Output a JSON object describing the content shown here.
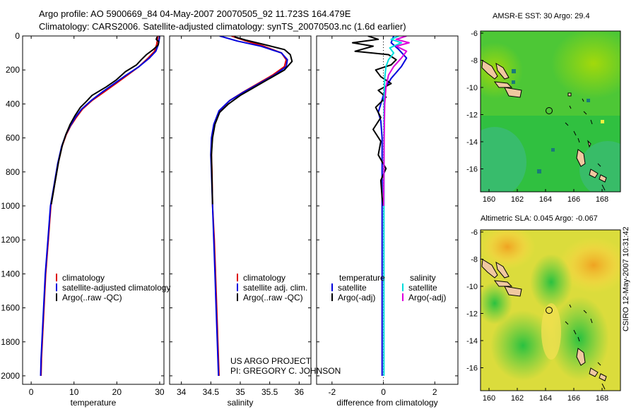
{
  "header": {
    "line1": "Argo profile: AO 5900669_84 04-May-2007 20070505_92 11.723S 164.479E",
    "line2": "Climatology: CARS2006. Satellite-adjusted climatology: synTS_20070503.nc (1.6d earlier)"
  },
  "credit": {
    "line1": "US ARGO PROJECT",
    "line2": "PI: GREGORY C. JOHNSON"
  },
  "stamp": "CSIRO 12-May-2007 10:31:42",
  "colors": {
    "climatology": "#dd0000",
    "satellite": "#0000dd",
    "argo": "#000000",
    "sat_sal": "#00dddd",
    "argo_sal": "#dd00dd",
    "land": "#f0c8a0"
  },
  "chart_data": [
    {
      "type": "line",
      "xlabel": "temperature",
      "xlim": [
        -2,
        31
      ],
      "ylim": [
        2050,
        0
      ],
      "xticks": [
        0,
        10,
        20,
        30
      ],
      "yticks": [
        0,
        200,
        400,
        600,
        800,
        1000,
        1200,
        1400,
        1600,
        1800,
        2000
      ],
      "legend": [
        "climatology",
        "satellite-adjusted climatology",
        "Argo(..raw -QC)"
      ],
      "series": [
        {
          "name": "climatology",
          "color": "#dd0000",
          "points": [
            [
              29.6,
              0
            ],
            [
              29.5,
              20
            ],
            [
              29.3,
              50
            ],
            [
              28.8,
              90
            ],
            [
              27.3,
              130
            ],
            [
              25.2,
              180
            ],
            [
              22.5,
              230
            ],
            [
              19.8,
              280
            ],
            [
              17,
              330
            ],
            [
              14.2,
              380
            ],
            [
              12,
              430
            ],
            [
              10.5,
              480
            ],
            [
              9.2,
              530
            ],
            [
              8.2,
              580
            ],
            [
              7.2,
              650
            ],
            [
              6.3,
              750
            ],
            [
              5.3,
              900
            ],
            [
              4.6,
              1000
            ],
            [
              4.0,
              1200
            ],
            [
              3.4,
              1400
            ],
            [
              3.0,
              1600
            ],
            [
              2.6,
              1800
            ],
            [
              2.4,
              1900
            ],
            [
              2.3,
              2000
            ]
          ]
        },
        {
          "name": "satellite-adjusted climatology",
          "color": "#0000dd",
          "points": [
            [
              30.0,
              0
            ],
            [
              29.9,
              20
            ],
            [
              29.7,
              50
            ],
            [
              29.1,
              90
            ],
            [
              27.6,
              130
            ],
            [
              25.2,
              180
            ],
            [
              22.2,
              230
            ],
            [
              19.4,
              280
            ],
            [
              16.6,
              330
            ],
            [
              14.0,
              380
            ],
            [
              11.8,
              430
            ],
            [
              10.3,
              480
            ],
            [
              9.1,
              530
            ],
            [
              8.1,
              580
            ],
            [
              7.1,
              650
            ],
            [
              6.2,
              750
            ],
            [
              5.2,
              900
            ],
            [
              4.5,
              1000
            ],
            [
              3.9,
              1200
            ],
            [
              3.3,
              1400
            ],
            [
              2.9,
              1600
            ],
            [
              2.5,
              1800
            ],
            [
              2.3,
              1900
            ],
            [
              2.2,
              2000
            ]
          ]
        },
        {
          "name": "Argo(..raw -QC)",
          "color": "#000000",
          "points": [
            [
              29.4,
              5
            ],
            [
              29.2,
              20
            ],
            [
              29.8,
              35
            ],
            [
              29.6,
              55
            ],
            [
              28.5,
              80
            ],
            [
              26.9,
              110
            ],
            [
              25.7,
              140
            ],
            [
              24.6,
              170
            ],
            [
              22,
              210
            ],
            [
              19.8,
              260
            ],
            [
              17.5,
              300
            ],
            [
              14.2,
              350
            ],
            [
              12.7,
              390
            ],
            [
              11.5,
              420
            ],
            [
              10.2,
              470
            ],
            [
              9.1,
              520
            ],
            [
              8.1,
              580
            ],
            [
              7.3,
              640
            ],
            [
              6.4,
              740
            ],
            [
              5.5,
              870
            ],
            [
              4.7,
              990
            ]
          ]
        }
      ]
    },
    {
      "type": "line",
      "xlabel": "salinity",
      "xlim": [
        33.8,
        36.2
      ],
      "ylim": [
        2050,
        0
      ],
      "xticks": [
        34,
        34.5,
        35,
        35.5,
        36
      ],
      "legend": [
        "climatology",
        "satellite adj. clim.",
        "Argo(..raw -QC)"
      ],
      "series": [
        {
          "name": "climatology",
          "color": "#dd0000",
          "points": [
            [
              34.85,
              0
            ],
            [
              35.1,
              30
            ],
            [
              35.4,
              60
            ],
            [
              35.7,
              100
            ],
            [
              35.78,
              140
            ],
            [
              35.75,
              180
            ],
            [
              35.55,
              230
            ],
            [
              35.3,
              280
            ],
            [
              35.05,
              330
            ],
            [
              34.82,
              380
            ],
            [
              34.65,
              440
            ],
            [
              34.56,
              520
            ],
            [
              34.52,
              600
            ],
            [
              34.51,
              700
            ],
            [
              34.52,
              800
            ],
            [
              34.53,
              1000
            ],
            [
              34.56,
              1200
            ],
            [
              34.58,
              1400
            ],
            [
              34.6,
              1600
            ],
            [
              34.62,
              1800
            ],
            [
              34.64,
              2000
            ]
          ]
        },
        {
          "name": "satellite adj. clim.",
          "color": "#0000dd",
          "points": [
            [
              34.65,
              0
            ],
            [
              34.95,
              30
            ],
            [
              35.35,
              60
            ],
            [
              35.7,
              100
            ],
            [
              35.8,
              140
            ],
            [
              35.78,
              180
            ],
            [
              35.58,
              230
            ],
            [
              35.32,
              280
            ],
            [
              35.06,
              330
            ],
            [
              34.82,
              380
            ],
            [
              34.64,
              440
            ],
            [
              34.55,
              520
            ],
            [
              34.51,
              600
            ],
            [
              34.5,
              700
            ],
            [
              34.51,
              800
            ],
            [
              34.53,
              1000
            ],
            [
              34.55,
              1200
            ],
            [
              34.57,
              1400
            ],
            [
              34.59,
              1600
            ],
            [
              34.61,
              1800
            ],
            [
              34.63,
              2000
            ]
          ]
        },
        {
          "name": "Argo(..raw -QC)",
          "color": "#000000",
          "points": [
            [
              34.9,
              5
            ],
            [
              35.1,
              25
            ],
            [
              35.4,
              50
            ],
            [
              35.75,
              80
            ],
            [
              35.85,
              110
            ],
            [
              35.88,
              150
            ],
            [
              35.75,
              200
            ],
            [
              35.5,
              250
            ],
            [
              35.25,
              300
            ],
            [
              35.0,
              350
            ],
            [
              34.8,
              400
            ],
            [
              34.65,
              450
            ],
            [
              34.57,
              520
            ],
            [
              34.53,
              600
            ],
            [
              34.51,
              700
            ],
            [
              34.52,
              850
            ],
            [
              34.53,
              990
            ]
          ]
        }
      ]
    },
    {
      "type": "line",
      "xlabel": "difference from climatology",
      "xlim": [
        -2.6,
        2.9
      ],
      "ylim": [
        2050,
        0
      ],
      "xticks": [
        -2,
        0,
        2
      ],
      "legend": [
        "temperature",
        "satellite",
        "Argo(-adj)",
        "salinity",
        "satellite",
        "Argo(-adj)"
      ],
      "series": [
        {
          "name": "satellite",
          "group": "temperature",
          "color": "#0000dd",
          "points": [
            [
              0.4,
              0
            ],
            [
              0.3,
              40
            ],
            [
              0.6,
              80
            ],
            [
              0.9,
              130
            ],
            [
              0.7,
              180
            ],
            [
              0.3,
              250
            ],
            [
              0.1,
              300
            ],
            [
              0.0,
              350
            ],
            [
              -0.1,
              400
            ],
            [
              -0.2,
              450
            ],
            [
              -0.1,
              500
            ],
            [
              -0.05,
              600
            ],
            [
              -0.05,
              800
            ],
            [
              -0.05,
              1000
            ],
            [
              -0.05,
              1200
            ],
            [
              -0.05,
              1500
            ],
            [
              -0.05,
              1800
            ],
            [
              -0.05,
              2000
            ]
          ]
        },
        {
          "name": "Argo(-adj)",
          "group": "temperature",
          "color": "#000000",
          "points": [
            [
              -0.6,
              0
            ],
            [
              -0.2,
              20
            ],
            [
              -1.2,
              40
            ],
            [
              -0.4,
              60
            ],
            [
              -1.1,
              90
            ],
            [
              0.2,
              110
            ],
            [
              0.5,
              140
            ],
            [
              0.3,
              170
            ],
            [
              -0.3,
              200
            ],
            [
              -0.1,
              240
            ],
            [
              0.3,
              280
            ],
            [
              -0.2,
              320
            ],
            [
              0.1,
              360
            ],
            [
              -0.3,
              420
            ],
            [
              -0.1,
              480
            ],
            [
              -0.4,
              550
            ],
            [
              -0.1,
              620
            ],
            [
              -0.2,
              700
            ],
            [
              0.1,
              780
            ],
            [
              -0.1,
              850
            ],
            [
              -0.05,
              950
            ],
            [
              0.0,
              1000
            ]
          ]
        },
        {
          "name": "satellite",
          "group": "salinity",
          "color": "#00dddd",
          "points": [
            [
              0.6,
              0
            ],
            [
              0.3,
              20
            ],
            [
              0.7,
              40
            ],
            [
              0.25,
              70
            ],
            [
              0.4,
              100
            ],
            [
              0.2,
              140
            ],
            [
              0.1,
              180
            ],
            [
              0.05,
              250
            ],
            [
              0.03,
              350
            ],
            [
              0.02,
              500
            ],
            [
              0.02,
              800
            ],
            [
              0.02,
              1200
            ],
            [
              0.02,
              1600
            ],
            [
              0.02,
              2000
            ]
          ]
        },
        {
          "name": "Argo(-adj)",
          "group": "salinity",
          "color": "#dd00dd",
          "points": [
            [
              0.9,
              0
            ],
            [
              0.5,
              20
            ],
            [
              1.0,
              40
            ],
            [
              0.5,
              60
            ],
            [
              0.9,
              90
            ],
            [
              0.7,
              130
            ],
            [
              0.4,
              180
            ],
            [
              0.2,
              230
            ],
            [
              0.1,
              300
            ],
            [
              0.05,
              400
            ],
            [
              0.03,
              600
            ],
            [
              0.02,
              800
            ],
            [
              0.01,
              1000
            ]
          ]
        }
      ]
    }
  ],
  "maps": [
    {
      "title": "AMSR-E SST: 30 Argo: 29.4",
      "xticks": [
        "160",
        "162",
        "164",
        "166",
        "168"
      ],
      "yticks": [
        "-6",
        "-8",
        "-10",
        "-12",
        "-14",
        "-16"
      ]
    },
    {
      "title": "Altimetric SLA: 0.045 Argo: -0.067",
      "xticks": [
        "160",
        "162",
        "164",
        "166",
        "168"
      ],
      "yticks": [
        "-6",
        "-8",
        "-10",
        "-12",
        "-14",
        "-16"
      ]
    }
  ]
}
